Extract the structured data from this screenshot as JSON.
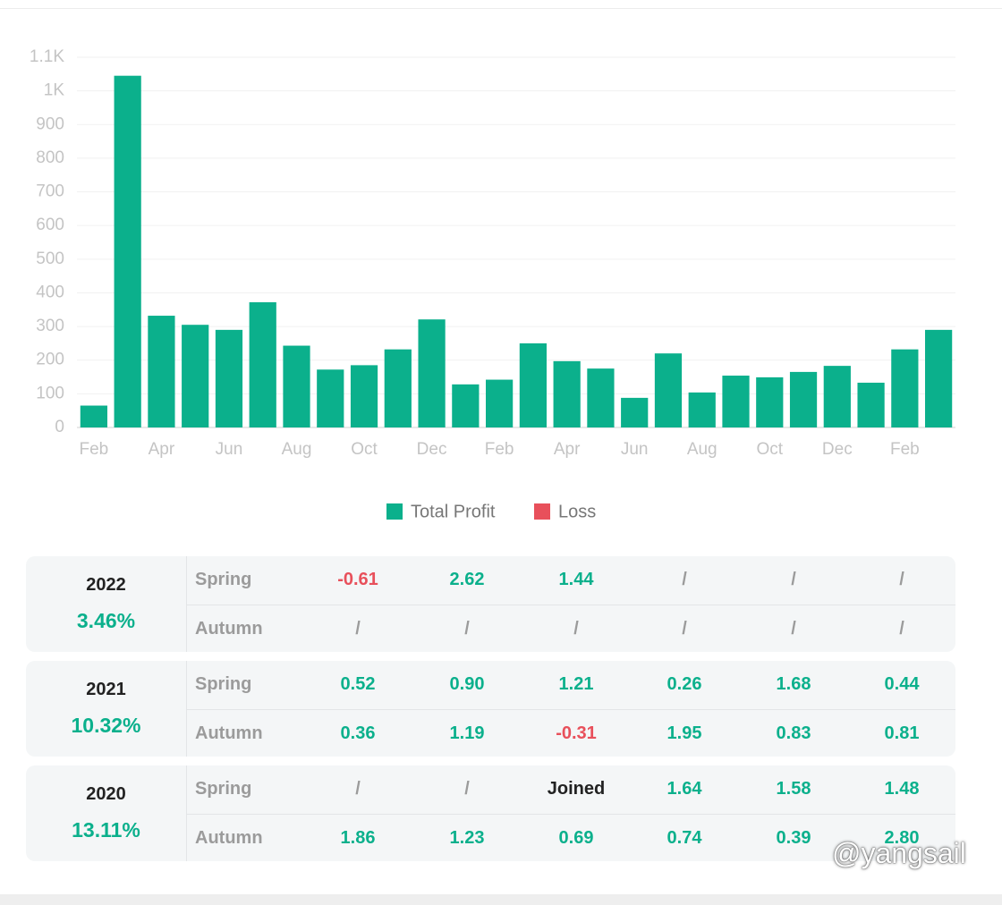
{
  "chart_data": {
    "type": "bar",
    "categories": [
      "Feb",
      null,
      "Apr",
      null,
      "Jun",
      null,
      "Aug",
      null,
      "Oct",
      null,
      "Dec",
      null,
      "Feb",
      null,
      "Apr",
      null,
      "Jun",
      null,
      "Aug",
      null,
      "Oct",
      null,
      "Dec",
      null,
      "Feb",
      null
    ],
    "series": [
      {
        "name": "Total Profit",
        "color": "#0bb08c",
        "values": [
          65,
          1045,
          332,
          305,
          290,
          372,
          243,
          172,
          185,
          232,
          321,
          128,
          142,
          250,
          197,
          175,
          88,
          220,
          104,
          154,
          149,
          165,
          183,
          133,
          232,
          290
        ]
      },
      {
        "name": "Loss",
        "color": "#e8505b",
        "values": [
          null,
          null,
          null,
          null,
          null,
          null,
          null,
          null,
          null,
          null,
          null,
          null,
          null,
          null,
          null,
          null,
          null,
          null,
          null,
          null,
          null,
          null,
          null,
          null,
          null,
          null
        ]
      }
    ],
    "ylim": [
      0,
      1100
    ],
    "yticks": [
      0,
      100,
      200,
      300,
      400,
      500,
      600,
      700,
      800,
      900,
      {
        "value": 1000,
        "label": "1K"
      },
      {
        "value": 1100,
        "label": "1.1K"
      }
    ],
    "grid": true,
    "legend": "bottom"
  },
  "table": {
    "rows": [
      {
        "year": "2022",
        "total": "3.46%",
        "seasons": [
          {
            "name": "Spring",
            "values": [
              "-0.61",
              "2.62",
              "1.44",
              "/",
              "/",
              "/"
            ]
          },
          {
            "name": "Autumn",
            "values": [
              "/",
              "/",
              "/",
              "/",
              "/",
              "/"
            ]
          }
        ]
      },
      {
        "year": "2021",
        "total": "10.32%",
        "seasons": [
          {
            "name": "Spring",
            "values": [
              "0.52",
              "0.90",
              "1.21",
              "0.26",
              "1.68",
              "0.44"
            ]
          },
          {
            "name": "Autumn",
            "values": [
              "0.36",
              "1.19",
              "-0.31",
              "1.95",
              "0.83",
              "0.81"
            ]
          }
        ]
      },
      {
        "year": "2020",
        "total": "13.11%",
        "seasons": [
          {
            "name": "Spring",
            "values": [
              "/",
              "/",
              "Joined",
              "1.64",
              "1.58",
              "1.48"
            ]
          },
          {
            "name": "Autumn",
            "values": [
              "1.86",
              "1.23",
              "0.69",
              "0.74",
              "0.39",
              "2.80"
            ]
          }
        ]
      }
    ]
  },
  "watermark": "@yangsail"
}
